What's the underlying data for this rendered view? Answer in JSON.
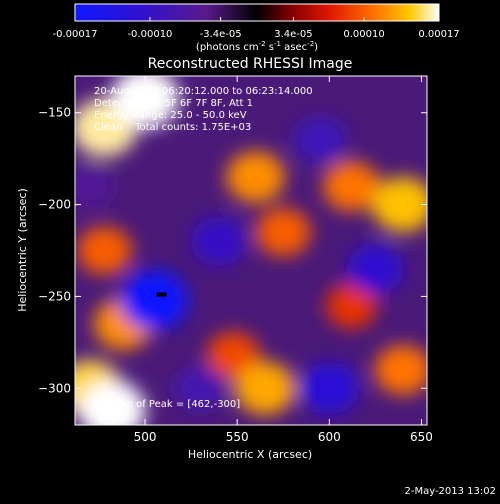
{
  "colorbar": {
    "tick_labels": [
      "-0.00017",
      "-0.00010",
      "-3.4e-05",
      "3.4e-05",
      "0.00010",
      "0.00017"
    ],
    "tick_values": [
      -0.00017,
      -0.0001,
      -3.4e-05,
      3.4e-05,
      0.0001,
      0.00017
    ],
    "range": [
      -0.00017,
      0.00017
    ],
    "units_main": "(photons cm",
    "units_sup1": "-2",
    "units_mid": " s",
    "units_sup2": "-1",
    "units_mid2": " asec",
    "units_sup3": "-2",
    "units_end": ")"
  },
  "chart_data": {
    "type": "heatmap",
    "title": "Reconstructed RHESSI Image",
    "xlabel": "Heliocentric X (arcsec)",
    "ylabel": "Heliocentric Y (arcsec)",
    "xlim": [
      462,
      653
    ],
    "ylim": [
      -320,
      -130
    ],
    "x_ticks": [
      500,
      550,
      600,
      650
    ],
    "y_ticks": [
      -300,
      -250,
      -200,
      -150
    ],
    "annotations": [
      "20-Aug-2002 06:20:12.000 to 06:23:14.000",
      "Detectors: 4F 5F 6F 7F 8F, Att 1",
      "Energy Range: 25.0 - 50.0 keV",
      "Clean    Total counts: 1.75E+03"
    ],
    "peak_label": "Position of Peak = [462,-300]",
    "peak_position": [
      462,
      -300
    ],
    "peak_marker": [
      509,
      -249
    ],
    "regions": [
      {
        "x": 478,
        "y": -158,
        "value": 0.00016
      },
      {
        "x": 500,
        "y": -142,
        "value": 0.00017
      },
      {
        "x": 478,
        "y": -225,
        "value": 0.0001
      },
      {
        "x": 488,
        "y": -265,
        "value": 0.00012
      },
      {
        "x": 470,
        "y": -300,
        "value": 0.00015
      },
      {
        "x": 482,
        "y": -312,
        "value": 0.00017
      },
      {
        "x": 560,
        "y": -185,
        "value": 0.00012
      },
      {
        "x": 575,
        "y": -215,
        "value": 0.0001
      },
      {
        "x": 548,
        "y": -282,
        "value": 9e-05
      },
      {
        "x": 565,
        "y": -300,
        "value": 0.00013
      },
      {
        "x": 612,
        "y": -190,
        "value": 0.00011
      },
      {
        "x": 640,
        "y": -200,
        "value": 0.00014
      },
      {
        "x": 612,
        "y": -255,
        "value": 8e-05
      },
      {
        "x": 640,
        "y": -290,
        "value": 0.00011
      },
      {
        "x": 505,
        "y": -252,
        "value": -0.00017
      },
      {
        "x": 540,
        "y": -220,
        "value": -0.0001
      },
      {
        "x": 595,
        "y": -165,
        "value": -9e-05
      },
      {
        "x": 625,
        "y": -235,
        "value": -0.00011
      },
      {
        "x": 600,
        "y": -300,
        "value": -0.00012
      },
      {
        "x": 530,
        "y": -300,
        "value": -8e-05
      },
      {
        "x": 470,
        "y": -190,
        "value": -6e-05
      }
    ]
  },
  "timestamp": "2-May-2013 13:02",
  "colors": {
    "background": "#000000",
    "foreground": "#ffffff"
  }
}
